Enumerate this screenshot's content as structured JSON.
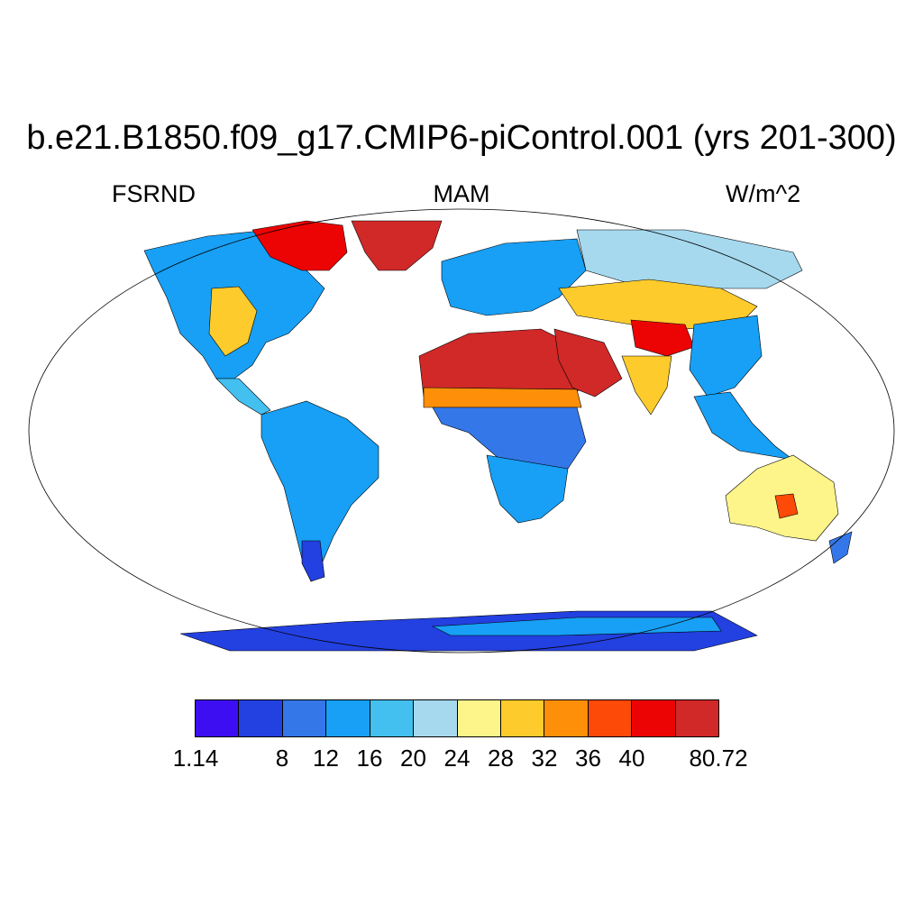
{
  "title": "b.e21.B1850.f09_g17.CMIP6-piControl.001 (yrs 201-300)",
  "left_label": "FSRND",
  "center_label": "MAM",
  "right_label": "W/m^2",
  "colorbar": {
    "colors": [
      "#3d0ef2",
      "#2340e0",
      "#3477e8",
      "#17a0f5",
      "#43bff0",
      "#a6d9ee",
      "#fdf58a",
      "#fdcb2c",
      "#fd9008",
      "#fd4a08",
      "#ec0303",
      "#d12828"
    ],
    "tick_labels": [
      "1.14",
      "8",
      "12",
      "16",
      "20",
      "24",
      "28",
      "32",
      "36",
      "40",
      "80.72"
    ]
  },
  "map": {
    "projection": "Robinson",
    "ocean_color": "#ffffff",
    "regions": [
      {
        "name": "Antarctica",
        "level": 1
      },
      {
        "name": "Sahara",
        "level": 11
      },
      {
        "name": "Arabian Peninsula",
        "level": 11
      },
      {
        "name": "Greenland",
        "level": 11
      },
      {
        "name": "Canadian Arctic",
        "level": 10
      },
      {
        "name": "Amazon",
        "level": 3
      },
      {
        "name": "Central Africa",
        "level": 2
      },
      {
        "name": "Tibetan Plateau",
        "level": 9
      },
      {
        "name": "Central Asia",
        "level": 7
      },
      {
        "name": "Australia interior",
        "level": 7
      },
      {
        "name": "Southeast Asia",
        "level": 3
      },
      {
        "name": "Europe",
        "level": 3
      }
    ]
  }
}
